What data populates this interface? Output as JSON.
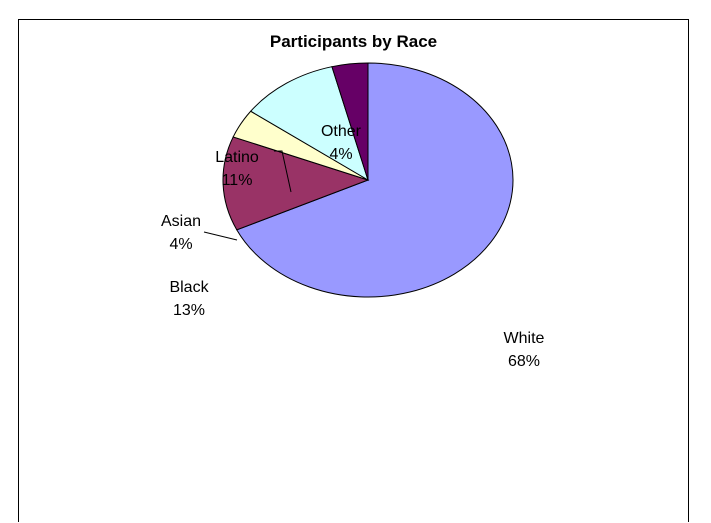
{
  "chart_data": {
    "type": "pie",
    "title": "Participants by Race",
    "slices": [
      {
        "label": "White",
        "pct_label": "68%",
        "value": 68,
        "color": "#9999FF"
      },
      {
        "label": "Black",
        "pct_label": "13%",
        "value": 13,
        "color": "#993366"
      },
      {
        "label": "Asian",
        "pct_label": "4%",
        "value": 4,
        "color": "#FFFFCC"
      },
      {
        "label": "Latino",
        "pct_label": "11%",
        "value": 11,
        "color": "#CCFFFF"
      },
      {
        "label": "Other",
        "pct_label": "4%",
        "value": 4,
        "color": "#660066"
      }
    ],
    "legend": "none",
    "data_labels": "category name and percentage"
  }
}
